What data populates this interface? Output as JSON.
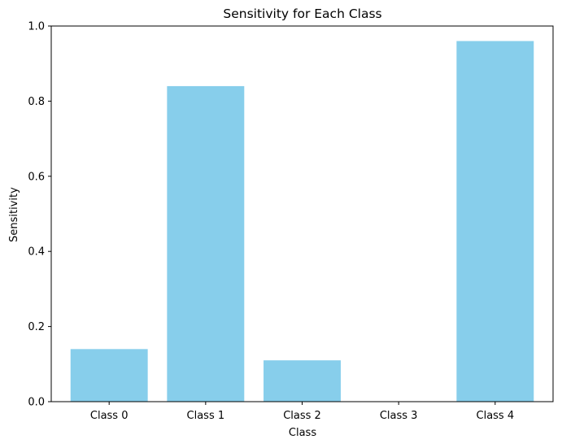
{
  "chart_data": {
    "type": "bar",
    "title": "Sensitivity for Each Class",
    "xlabel": "Class",
    "ylabel": "Sensitivity",
    "categories": [
      "Class 0",
      "Class 1",
      "Class 2",
      "Class 3",
      "Class 4"
    ],
    "values": [
      0.14,
      0.84,
      0.11,
      0.0,
      0.96
    ],
    "ylim": [
      0,
      1.0
    ],
    "yticks": [
      "0.0",
      "0.2",
      "0.4",
      "0.6",
      "0.8",
      "1.0"
    ],
    "bar_color": "#87CEEB",
    "grid": false,
    "legend": "none"
  }
}
